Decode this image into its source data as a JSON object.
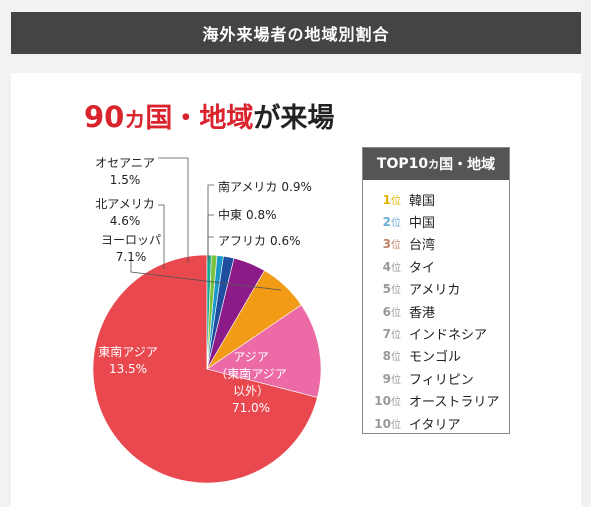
{
  "header": {
    "title": "海外来場者の地域別割合"
  },
  "headline": {
    "count": "90",
    "unit": "カ",
    "region_text": "国・地域",
    "suffix": "が来場"
  },
  "chart_data": {
    "type": "pie",
    "slices": [
      {
        "name": "アジア（東南アジア以外）",
        "label_lines": [
          "アジア",
          "（東南アジア",
          "以外）"
        ],
        "value": 71.0,
        "value_label": "71.0%",
        "color": "#e8484e"
      },
      {
        "name": "東南アジア",
        "label_lines": [
          "東南アジア"
        ],
        "value": 13.5,
        "value_label": "13.5%",
        "color": "#ec6ba7"
      },
      {
        "name": "ヨーロッパ",
        "label_lines": [
          "ヨーロッパ"
        ],
        "value": 7.1,
        "value_label": "7.1%",
        "color": "#f29b17"
      },
      {
        "name": "北アメリカ",
        "label_lines": [
          "北アメリカ"
        ],
        "value": 4.6,
        "value_label": "4.6%",
        "color": "#8c1b88"
      },
      {
        "name": "オセアニア",
        "label_lines": [
          "オセアニア"
        ],
        "value": 1.5,
        "value_label": "1.5%",
        "color": "#1f4ea1"
      },
      {
        "name": "南アメリカ",
        "label_lines": [
          "南アメリカ"
        ],
        "value": 0.9,
        "value_label": "0.9%",
        "color": "#1a96c8"
      },
      {
        "name": "中東",
        "label_lines": [
          "中東"
        ],
        "value": 0.8,
        "value_label": "0.8%",
        "color": "#7cc242"
      },
      {
        "name": "アフリカ",
        "label_lines": [
          "アフリカ"
        ],
        "value": 0.6,
        "value_label": "0.6%",
        "color": "#19a98f"
      }
    ]
  },
  "top10": {
    "title": "TOP10",
    "title_unit": "カ",
    "title_rest": "国・地域",
    "rank_suffix": "位",
    "colors": {
      "gold": "#e2b400",
      "silver": "#6aaed6",
      "bronze": "#c0836a",
      "gray": "#999999"
    },
    "items": [
      {
        "rank": "1",
        "name": "韓国"
      },
      {
        "rank": "2",
        "name": "中国"
      },
      {
        "rank": "3",
        "name": "台湾"
      },
      {
        "rank": "4",
        "name": "タイ"
      },
      {
        "rank": "5",
        "name": "アメリカ"
      },
      {
        "rank": "6",
        "name": "香港"
      },
      {
        "rank": "7",
        "name": "インドネシア"
      },
      {
        "rank": "8",
        "name": "モンゴル"
      },
      {
        "rank": "9",
        "name": "フィリピン"
      },
      {
        "rank": "10",
        "name": "オーストラリア"
      },
      {
        "rank": "10",
        "name": "イタリア"
      }
    ]
  }
}
